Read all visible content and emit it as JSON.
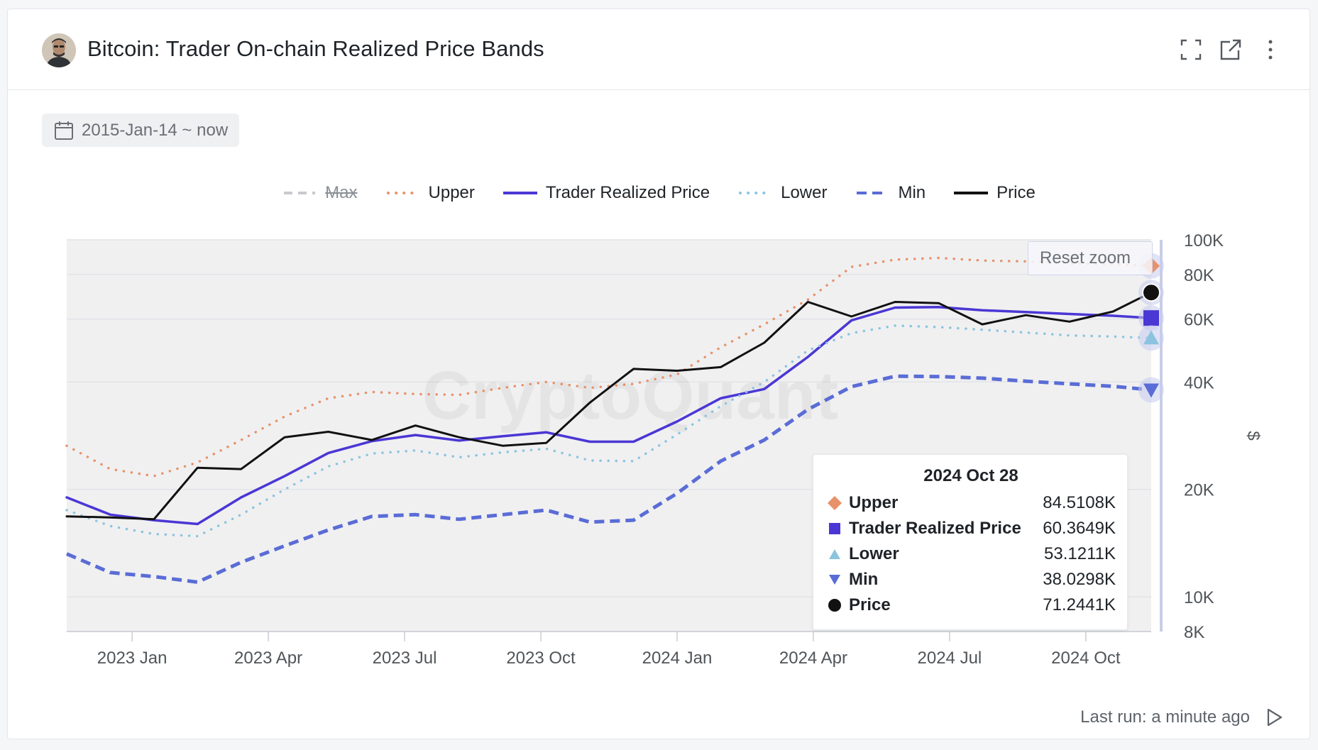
{
  "header": {
    "title": "Bitcoin: Trader On-chain Realized Price Bands",
    "icons": [
      "fullscreen-icon",
      "external-link-icon",
      "more-vertical-icon"
    ]
  },
  "date_range": {
    "label": "2015-Jan-14 ~ now"
  },
  "reset_zoom_label": "Reset zoom",
  "watermark": "CryptoQuant",
  "footer": {
    "last_run": "Last run: a minute ago"
  },
  "colors": {
    "upper": "#e8926a",
    "trader": "#4a37d4",
    "lower": "#8cc4e0",
    "min": "#5a6cd6",
    "price": "#111111",
    "max": "#c8cacd"
  },
  "tooltip": {
    "date": "2024 Oct 28",
    "rows": [
      {
        "name": "Upper",
        "value": "84.5108K",
        "marker": "diamond",
        "color": "#e8926a"
      },
      {
        "name": "Trader Realized Price",
        "value": "60.3649K",
        "marker": "square",
        "color": "#4a37d4"
      },
      {
        "name": "Lower",
        "value": "53.1211K",
        "marker": "triangle-up",
        "color": "#8cc4e0"
      },
      {
        "name": "Min",
        "value": "38.0298K",
        "marker": "triangle-down",
        "color": "#5a6cd6"
      },
      {
        "name": "Price",
        "value": "71.2441K",
        "marker": "circle",
        "color": "#111111"
      }
    ]
  },
  "chart_data": {
    "type": "line",
    "title": "Bitcoin: Trader On-chain Realized Price Bands",
    "ylabel": "$",
    "yscale": "log",
    "ylim": [
      8000,
      100000
    ],
    "yticks": [
      8000,
      10000,
      20000,
      40000,
      60000,
      80000,
      100000
    ],
    "ytick_labels": [
      "8K",
      "10K",
      "20K",
      "40K",
      "60K",
      "80K",
      "100K"
    ],
    "xlim": [
      2022.88,
      2024.87
    ],
    "xticks": [
      2023.0,
      2023.25,
      2023.5,
      2023.75,
      2024.0,
      2024.25,
      2024.5,
      2024.75
    ],
    "xtick_labels": [
      "2023 Jan",
      "2023 Apr",
      "2023 Jul",
      "2023 Oct",
      "2024 Jan",
      "2024 Apr",
      "2024 Jul",
      "2024 Oct"
    ],
    "legend": [
      {
        "name": "Max",
        "style": "dashed",
        "hidden": true
      },
      {
        "name": "Upper",
        "style": "dotted"
      },
      {
        "name": "Trader Realized Price",
        "style": "solid"
      },
      {
        "name": "Lower",
        "style": "dotted"
      },
      {
        "name": "Min",
        "style": "dashed"
      },
      {
        "name": "Price",
        "style": "solid"
      }
    ],
    "x": [
      2022.88,
      2022.96,
      2023.04,
      2023.12,
      2023.2,
      2023.28,
      2023.36,
      2023.44,
      2023.52,
      2023.6,
      2023.68,
      2023.76,
      2023.84,
      2023.92,
      2024.0,
      2024.08,
      2024.16,
      2024.24,
      2024.32,
      2024.4,
      2024.48,
      2024.56,
      2024.64,
      2024.72,
      2024.8,
      2024.87
    ],
    "series": [
      {
        "name": "Upper",
        "values": [
          26500,
          22800,
          21800,
          23800,
          27500,
          32000,
          36000,
          37500,
          37000,
          36800,
          38500,
          40000,
          38500,
          39500,
          42000,
          50000,
          58000,
          68000,
          84000,
          88000,
          89000,
          87500,
          87000,
          86000,
          85500,
          84500
        ]
      },
      {
        "name": "Trader Realized Price",
        "values": [
          19000,
          17000,
          16400,
          16000,
          19000,
          21800,
          25300,
          27300,
          28400,
          27400,
          28200,
          28900,
          27200,
          27200,
          31000,
          36000,
          38200,
          47000,
          59500,
          64600,
          64800,
          63500,
          62800,
          62000,
          61300,
          60400
        ]
      },
      {
        "name": "Lower",
        "values": [
          17500,
          15800,
          15000,
          14800,
          17000,
          20000,
          23200,
          25200,
          25700,
          24600,
          25400,
          26000,
          24100,
          24000,
          28500,
          34200,
          40000,
          49000,
          54800,
          57500,
          57000,
          56000,
          55000,
          54000,
          53600,
          53100
        ]
      },
      {
        "name": "Min",
        "values": [
          13200,
          11700,
          11400,
          11000,
          12500,
          13900,
          15400,
          16800,
          17000,
          16500,
          17000,
          17500,
          16200,
          16400,
          19500,
          24000,
          27500,
          33500,
          38800,
          41500,
          41400,
          41000,
          40200,
          39500,
          38900,
          38000
        ]
      },
      {
        "name": "Price",
        "values": [
          16800,
          16700,
          16500,
          23000,
          22800,
          28000,
          29000,
          27500,
          30200,
          28000,
          26500,
          27000,
          35000,
          43500,
          43000,
          44000,
          51500,
          67000,
          61000,
          67000,
          66500,
          58000,
          61500,
          59000,
          63000,
          71200
        ]
      }
    ]
  }
}
